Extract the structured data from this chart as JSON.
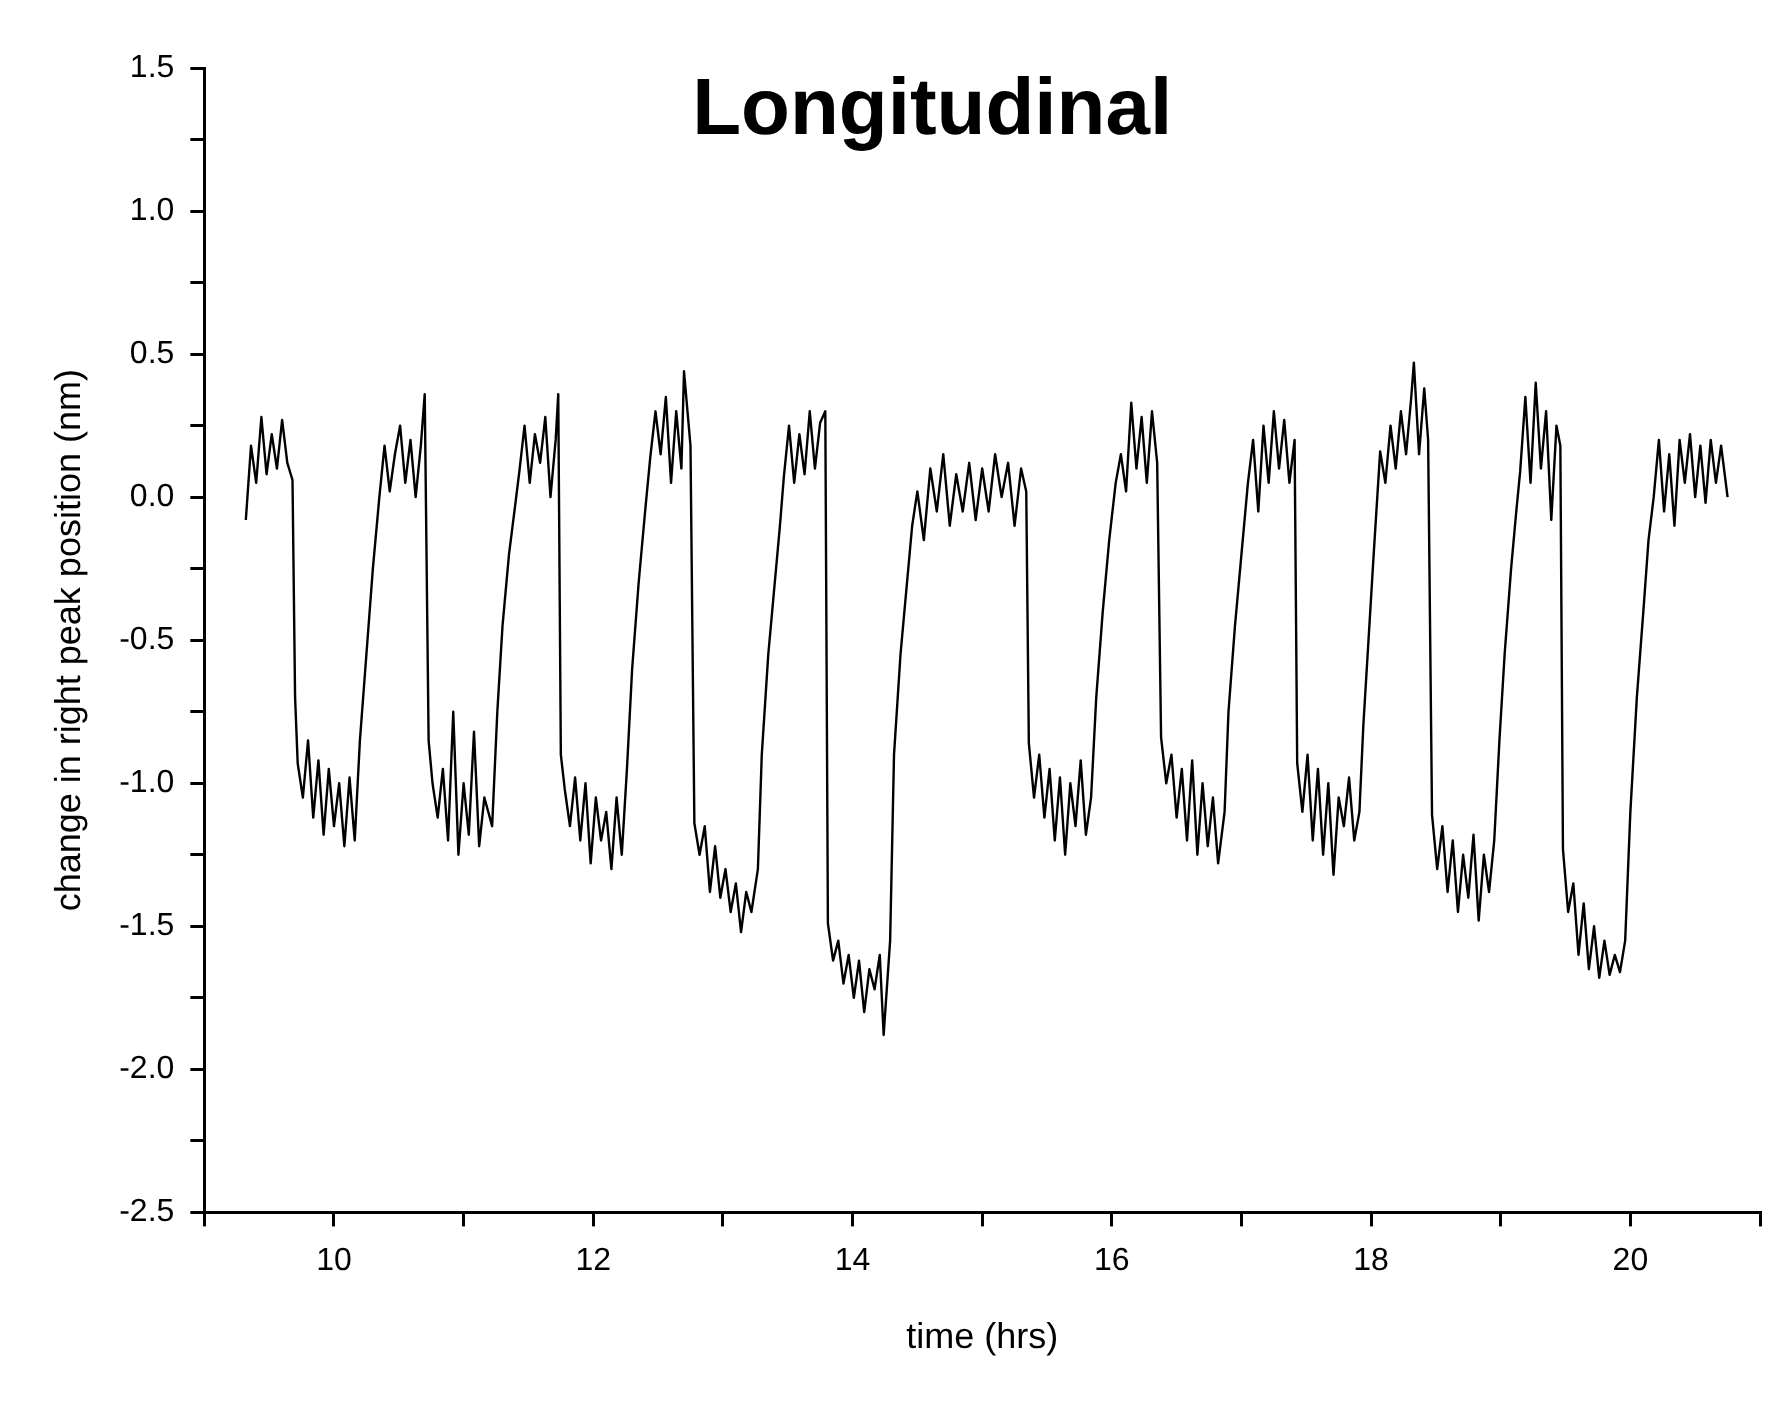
{
  "chart_data": {
    "type": "line",
    "title": "Longitudinal",
    "xlabel": "time (hrs)",
    "ylabel": "change in right peak position (nm)",
    "xlim": [
      9,
      21
    ],
    "ylim": [
      -2.5,
      1.5
    ],
    "xticks": [
      {
        "value": 9,
        "label": null
      },
      10,
      {
        "value": 11,
        "label": null
      },
      12,
      {
        "value": 13,
        "label": null
      },
      14,
      {
        "value": 15,
        "label": null
      },
      16,
      {
        "value": 17,
        "label": null
      },
      18,
      {
        "value": 19,
        "label": null
      },
      20,
      {
        "value": 21,
        "label": null
      }
    ],
    "yticks": [
      {
        "value": -2.5,
        "label": "-2.5"
      },
      {
        "value": -2.25,
        "label": null
      },
      {
        "value": -2,
        "label": "-2.0"
      },
      {
        "value": -1.75,
        "label": null
      },
      {
        "value": -1.5,
        "label": "-1.5"
      },
      {
        "value": -1.25,
        "label": null
      },
      {
        "value": -1,
        "label": "-1.0"
      },
      {
        "value": -0.75,
        "label": null
      },
      {
        "value": -0.5,
        "label": "-0.5"
      },
      {
        "value": -0.25,
        "label": null
      },
      {
        "value": 0,
        "label": "0.0"
      },
      {
        "value": 0.25,
        "label": null
      },
      {
        "value": 0.5,
        "label": "0.5"
      },
      {
        "value": 0.75,
        "label": null
      },
      {
        "value": 1,
        "label": "1.0"
      },
      {
        "value": 1.25,
        "label": null
      },
      {
        "value": 1.5,
        "label": "1.5"
      }
    ],
    "x": [
      9.32,
      9.36,
      9.4,
      9.44,
      9.48,
      9.52,
      9.56,
      9.6,
      9.64,
      9.68,
      9.7,
      9.72,
      9.76,
      9.8,
      9.84,
      9.88,
      9.92,
      9.96,
      10.0,
      10.04,
      10.08,
      10.12,
      10.16,
      10.2,
      10.25,
      10.3,
      10.35,
      10.39,
      10.43,
      10.47,
      10.51,
      10.55,
      10.59,
      10.63,
      10.67,
      10.7,
      10.73,
      10.76,
      10.8,
      10.84,
      10.88,
      10.92,
      10.96,
      11.0,
      11.04,
      11.08,
      11.12,
      11.16,
      11.22,
      11.26,
      11.3,
      11.35,
      11.4,
      11.43,
      11.47,
      11.51,
      11.55,
      11.59,
      11.63,
      11.67,
      11.71,
      11.73,
      11.75,
      11.78,
      11.82,
      11.86,
      11.9,
      11.94,
      11.98,
      12.02,
      12.06,
      12.1,
      12.14,
      12.18,
      12.22,
      12.26,
      12.3,
      12.35,
      12.4,
      12.44,
      12.48,
      12.52,
      12.56,
      12.6,
      12.64,
      12.68,
      12.7,
      12.75,
      12.78,
      12.82,
      12.86,
      12.9,
      12.94,
      12.98,
      13.02,
      13.06,
      13.1,
      13.14,
      13.18,
      13.22,
      13.27,
      13.3,
      13.35,
      13.4,
      13.44,
      13.47,
      13.51,
      13.55,
      13.59,
      13.63,
      13.67,
      13.71,
      13.75,
      13.79,
      13.81,
      13.85,
      13.89,
      13.93,
      13.97,
      14.01,
      14.05,
      14.09,
      14.13,
      14.17,
      14.21,
      14.24,
      14.29,
      14.32,
      14.37,
      14.42,
      14.46,
      14.5,
      14.55,
      14.6,
      14.65,
      14.7,
      14.75,
      14.8,
      14.85,
      14.9,
      14.95,
      15.0,
      15.05,
      15.1,
      15.15,
      15.2,
      15.25,
      15.3,
      15.34,
      15.36,
      15.4,
      15.44,
      15.48,
      15.52,
      15.56,
      15.6,
      15.64,
      15.68,
      15.72,
      15.76,
      15.8,
      15.84,
      15.88,
      15.93,
      15.98,
      16.03,
      16.07,
      16.11,
      16.15,
      16.19,
      16.23,
      16.27,
      16.31,
      16.35,
      16.38,
      16.42,
      16.46,
      16.5,
      16.54,
      16.58,
      16.62,
      16.66,
      16.7,
      16.74,
      16.78,
      16.82,
      16.87,
      16.9,
      16.95,
      17.0,
      17.05,
      17.09,
      17.13,
      17.17,
      17.21,
      17.25,
      17.29,
      17.33,
      17.37,
      17.41,
      17.43,
      17.47,
      17.51,
      17.55,
      17.59,
      17.63,
      17.67,
      17.71,
      17.75,
      17.79,
      17.83,
      17.87,
      17.91,
      17.94,
      17.98,
      18.02,
      18.07,
      18.11,
      18.15,
      18.19,
      18.23,
      18.27,
      18.31,
      18.33,
      18.37,
      18.41,
      18.44,
      18.47,
      18.51,
      18.55,
      18.59,
      18.63,
      18.67,
      18.71,
      18.75,
      18.79,
      18.83,
      18.87,
      18.91,
      18.95,
      18.99,
      19.03,
      19.08,
      19.12,
      19.15,
      19.19,
      19.23,
      19.27,
      19.31,
      19.35,
      19.39,
      19.43,
      19.46,
      19.48,
      19.52,
      19.56,
      19.6,
      19.64,
      19.68,
      19.72,
      19.76,
      19.8,
      19.84,
      19.88,
      19.92,
      19.96,
      20.0,
      20.05,
      20.1,
      20.14,
      20.18,
      20.22,
      20.26,
      20.3,
      20.34,
      20.38,
      20.42,
      20.46,
      20.5,
      20.54,
      20.58,
      20.62,
      20.66,
      20.7,
      20.75
    ],
    "series": [
      {
        "color": "#000000",
        "values": [
          -0.08,
          0.18,
          0.05,
          0.28,
          0.08,
          0.22,
          0.1,
          0.27,
          0.12,
          0.06,
          -0.7,
          -0.93,
          -1.05,
          -0.85,
          -1.12,
          -0.92,
          -1.18,
          -0.95,
          -1.15,
          -1.0,
          -1.22,
          -0.98,
          -1.2,
          -0.85,
          -0.55,
          -0.25,
          0.0,
          0.18,
          0.02,
          0.15,
          0.25,
          0.05,
          0.2,
          0.0,
          0.18,
          0.36,
          -0.85,
          -1.0,
          -1.12,
          -0.95,
          -1.2,
          -0.75,
          -1.25,
          -1.0,
          -1.18,
          -0.82,
          -1.22,
          -1.05,
          -1.15,
          -0.75,
          -0.45,
          -0.2,
          -0.02,
          0.09,
          0.25,
          0.05,
          0.22,
          0.12,
          0.28,
          0.0,
          0.2,
          0.36,
          -0.9,
          -1.02,
          -1.15,
          -0.98,
          -1.2,
          -1.0,
          -1.28,
          -1.05,
          -1.2,
          -1.1,
          -1.3,
          -1.05,
          -1.25,
          -0.95,
          -0.6,
          -0.3,
          -0.05,
          0.14,
          0.3,
          0.15,
          0.35,
          0.05,
          0.3,
          0.1,
          0.44,
          0.18,
          -1.14,
          -1.25,
          -1.15,
          -1.38,
          -1.22,
          -1.4,
          -1.3,
          -1.45,
          -1.35,
          -1.52,
          -1.38,
          -1.45,
          -1.3,
          -0.9,
          -0.55,
          -0.3,
          -0.1,
          0.07,
          0.25,
          0.05,
          0.22,
          0.08,
          0.3,
          0.1,
          0.26,
          0.3,
          -1.49,
          -1.62,
          -1.55,
          -1.7,
          -1.6,
          -1.75,
          -1.62,
          -1.8,
          -1.65,
          -1.72,
          -1.6,
          -1.88,
          -1.55,
          -0.9,
          -0.55,
          -0.3,
          -0.1,
          0.02,
          -0.15,
          0.1,
          -0.05,
          0.15,
          -0.1,
          0.08,
          -0.05,
          0.12,
          -0.08,
          0.1,
          -0.05,
          0.15,
          0.0,
          0.12,
          -0.1,
          0.1,
          0.02,
          -0.86,
          -1.05,
          -0.9,
          -1.12,
          -0.95,
          -1.2,
          -0.98,
          -1.25,
          -1.0,
          -1.15,
          -0.92,
          -1.18,
          -1.05,
          -0.7,
          -0.4,
          -0.15,
          0.05,
          0.15,
          0.02,
          0.33,
          0.1,
          0.28,
          0.05,
          0.3,
          0.12,
          -0.84,
          -1.0,
          -0.9,
          -1.12,
          -0.95,
          -1.2,
          -0.92,
          -1.25,
          -1.0,
          -1.22,
          -1.05,
          -1.28,
          -1.1,
          -0.75,
          -0.45,
          -0.2,
          0.05,
          0.2,
          -0.05,
          0.25,
          0.05,
          0.3,
          0.1,
          0.27,
          0.05,
          0.2,
          -0.93,
          -1.1,
          -0.9,
          -1.2,
          -0.95,
          -1.25,
          -1.0,
          -1.32,
          -1.05,
          -1.15,
          -0.98,
          -1.2,
          -1.1,
          -0.8,
          -0.5,
          -0.2,
          0.16,
          0.05,
          0.25,
          0.1,
          0.3,
          0.15,
          0.35,
          0.47,
          0.15,
          0.38,
          0.2,
          -1.11,
          -1.3,
          -1.15,
          -1.38,
          -1.2,
          -1.45,
          -1.25,
          -1.4,
          -1.18,
          -1.48,
          -1.25,
          -1.38,
          -1.2,
          -0.85,
          -0.55,
          -0.25,
          -0.05,
          0.09,
          0.35,
          0.05,
          0.4,
          0.1,
          0.3,
          -0.08,
          0.25,
          0.18,
          -1.23,
          -1.45,
          -1.35,
          -1.6,
          -1.42,
          -1.65,
          -1.5,
          -1.68,
          -1.55,
          -1.67,
          -1.6,
          -1.66,
          -1.55,
          -1.1,
          -0.7,
          -0.4,
          -0.15,
          0.0,
          0.2,
          -0.05,
          0.15,
          -0.1,
          0.2,
          0.05,
          0.22,
          0.0,
          0.18,
          -0.02,
          0.2,
          0.05,
          0.18,
          0.0
        ]
      }
    ]
  }
}
